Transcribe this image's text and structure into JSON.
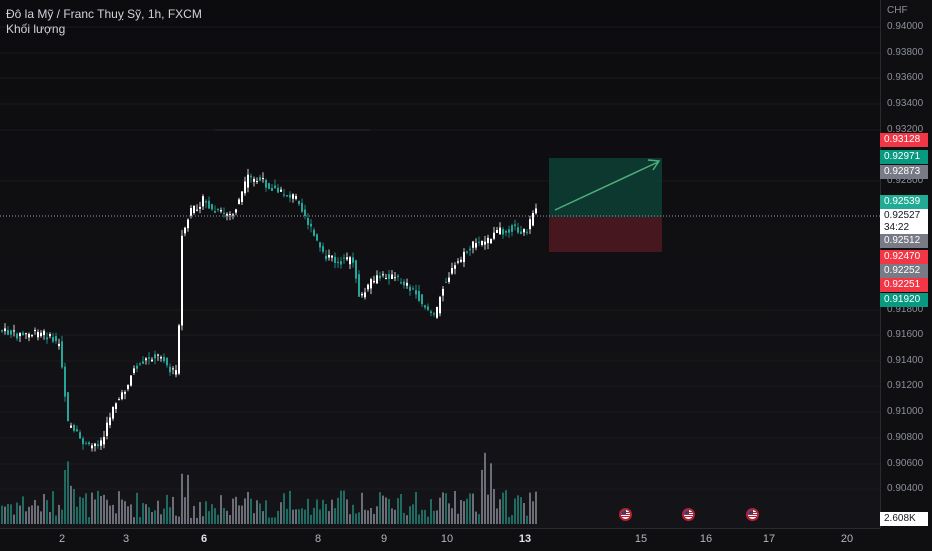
{
  "legend": {
    "symbol_line": "Đô la Mỹ / Franc Thuỵ Sỹ, 1h, FXCM",
    "indicator": "Khối lượng"
  },
  "price_axis": {
    "currency": "CHF",
    "ticks": [
      "0.94000",
      "0.93800",
      "0.93600",
      "0.93400",
      "0.93200",
      "0.92800",
      "0.91800",
      "0.91600",
      "0.91400",
      "0.91200",
      "0.91000",
      "0.90800",
      "0.90600",
      "0.90400"
    ],
    "tags": [
      {
        "value": "0.93128",
        "color": "#f23645"
      },
      {
        "value": "0.92971",
        "color": "#089981"
      },
      {
        "value": "0.92873",
        "color": "#787b86"
      },
      {
        "value": "0.92539",
        "color": "#22ab94"
      },
      {
        "value": "0.92527",
        "color": "#ffffff",
        "countdown": "34:22"
      },
      {
        "value": "0.92512",
        "color": "#787b86"
      },
      {
        "value": "0.92470",
        "color": "#f23645"
      },
      {
        "value": "0.92252",
        "color": "#787b86"
      },
      {
        "value": "0.92251",
        "color": "#f23645"
      },
      {
        "value": "0.91920",
        "color": "#089981"
      }
    ],
    "volume_tag": "2.608K"
  },
  "time_axis": {
    "labels": [
      {
        "text": "2",
        "bold": false
      },
      {
        "text": "3",
        "bold": false
      },
      {
        "text": "6",
        "bold": true
      },
      {
        "text": "8",
        "bold": false
      },
      {
        "text": "9",
        "bold": false
      },
      {
        "text": "10",
        "bold": false
      },
      {
        "text": "13",
        "bold": true
      },
      {
        "text": "15",
        "bold": false
      },
      {
        "text": "16",
        "bold": false
      },
      {
        "text": "17",
        "bold": false
      },
      {
        "text": "20",
        "bold": false
      }
    ]
  },
  "events": {
    "icon": "us-flag-icon",
    "count": 3
  },
  "colors": {
    "up": "#ffffff",
    "down": "#26a69a",
    "profit_zone": "#0e3b33",
    "loss_zone": "#4a1820",
    "arrow": "#4caf7a"
  }
}
